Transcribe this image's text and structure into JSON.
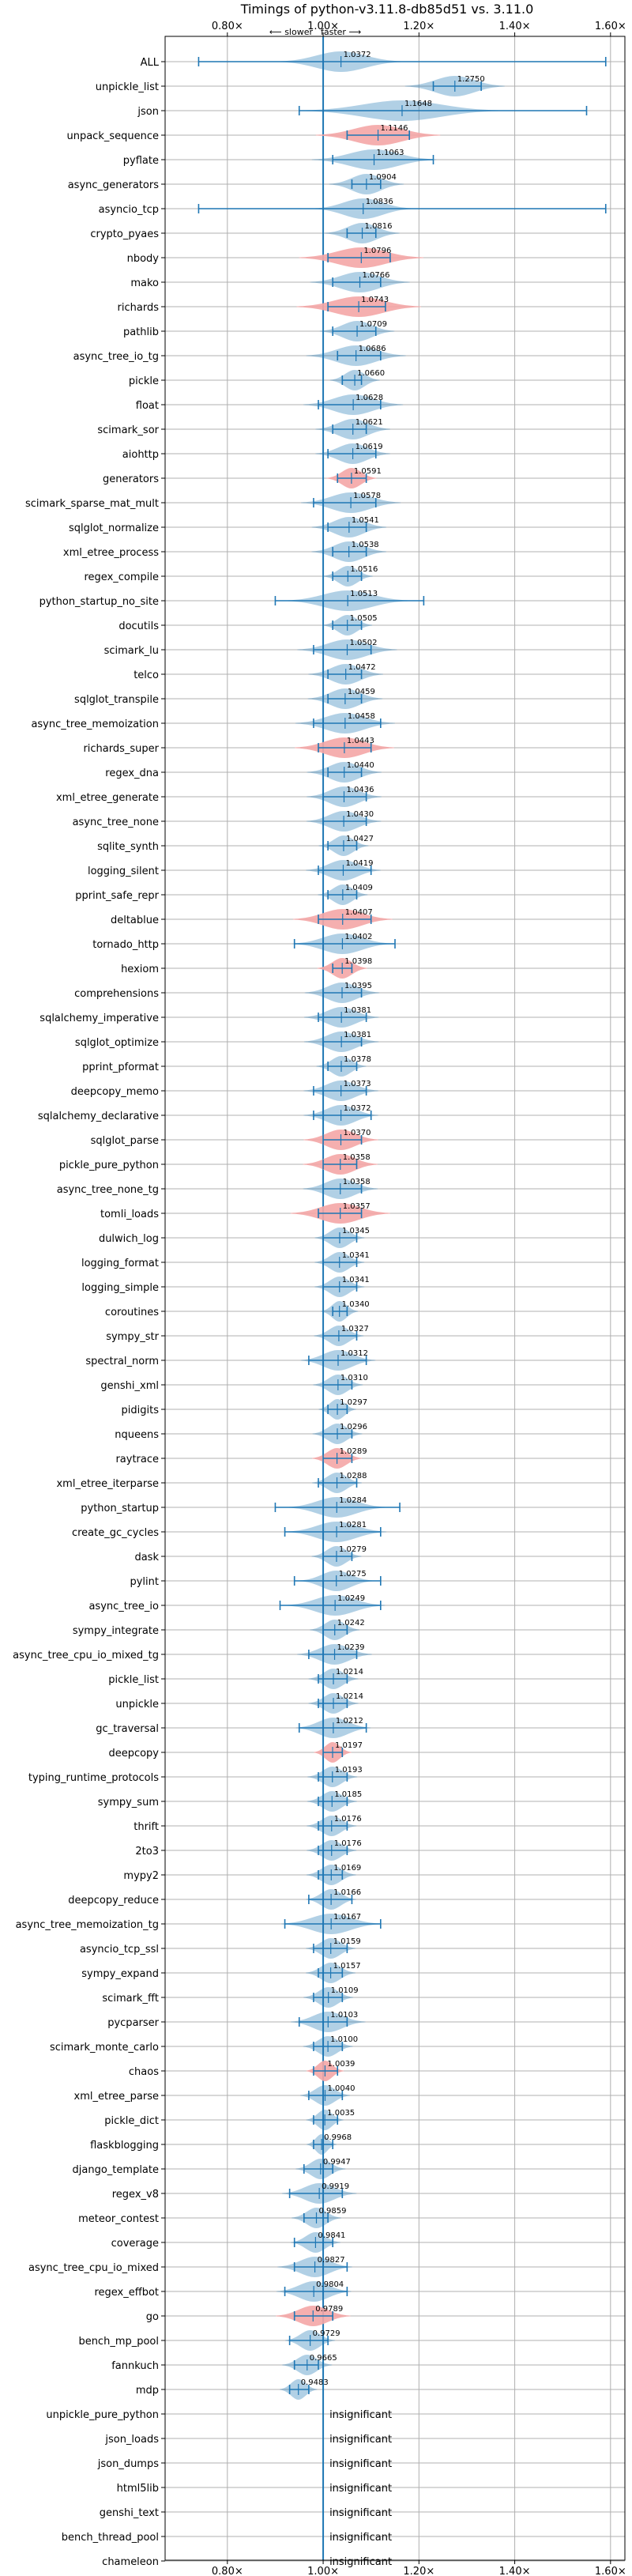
{
  "chart_data": {
    "type": "violin",
    "title": "Timings of python-v3.11.8-db85d51 vs. 3.11.0",
    "annotation_slower": "⟵ slower",
    "annotation_faster": "faster ⟶",
    "xlim": [
      0.67,
      1.63
    ],
    "xticks": [
      0.8,
      1.0,
      1.2,
      1.4,
      1.6
    ],
    "xtick_labels": [
      "0.80×",
      "1.00×",
      "1.20×",
      "1.40×",
      "1.60×"
    ],
    "reference_line": 1.0,
    "grid": true,
    "colors": {
      "normal": "#1f77b4",
      "highlight": "#f4a6a6",
      "line": "#1f77b4",
      "grid": "#b0b0b0"
    },
    "insignificant_label": "insignificant",
    "benchmarks": [
      {
        "name": "ALL",
        "mean": 1.0372,
        "label": "1.0372",
        "min": 0.74,
        "max": 1.59,
        "spread": 0.05
      },
      {
        "name": "unpickle_list",
        "mean": 1.275,
        "label": "1.2750",
        "min": 1.23,
        "max": 1.33,
        "spread": 0.04
      },
      {
        "name": "json",
        "mean": 1.1648,
        "label": "1.1648",
        "min": 0.95,
        "max": 1.55,
        "spread": 0.08
      },
      {
        "name": "unpack_sequence",
        "mean": 1.1146,
        "label": "1.1146",
        "min": 1.05,
        "max": 1.18,
        "spread": 0.05,
        "highlight": true
      },
      {
        "name": "pyflate",
        "mean": 1.1063,
        "label": "1.1063",
        "min": 1.02,
        "max": 1.23,
        "spread": 0.05
      },
      {
        "name": "async_generators",
        "mean": 1.0904,
        "label": "1.0904",
        "min": 1.06,
        "max": 1.12,
        "spread": 0.03
      },
      {
        "name": "asyncio_tcp",
        "mean": 1.0836,
        "label": "1.0836",
        "min": 0.74,
        "max": 1.59,
        "spread": 0.04
      },
      {
        "name": "crypto_pyaes",
        "mean": 1.0816,
        "label": "1.0816",
        "min": 1.05,
        "max": 1.11,
        "spread": 0.03
      },
      {
        "name": "nbody",
        "mean": 1.0796,
        "label": "1.0796",
        "min": 1.01,
        "max": 1.14,
        "spread": 0.05,
        "highlight": true
      },
      {
        "name": "mako",
        "mean": 1.0766,
        "label": "1.0766",
        "min": 1.02,
        "max": 1.12,
        "spread": 0.04
      },
      {
        "name": "richards",
        "mean": 1.0743,
        "label": "1.0743",
        "min": 1.01,
        "max": 1.13,
        "spread": 0.05,
        "highlight": true
      },
      {
        "name": "pathlib",
        "mean": 1.0709,
        "label": "1.0709",
        "min": 1.02,
        "max": 1.11,
        "spread": 0.03
      },
      {
        "name": "async_tree_io_tg",
        "mean": 1.0686,
        "label": "1.0686",
        "min": 1.03,
        "max": 1.12,
        "spread": 0.04
      },
      {
        "name": "pickle",
        "mean": 1.066,
        "label": "1.0660",
        "min": 1.04,
        "max": 1.08,
        "spread": 0.02
      },
      {
        "name": "float",
        "mean": 1.0628,
        "label": "1.0628",
        "min": 0.99,
        "max": 1.12,
        "spread": 0.04
      },
      {
        "name": "scimark_sor",
        "mean": 1.0621,
        "label": "1.0621",
        "min": 1.02,
        "max": 1.09,
        "spread": 0.03
      },
      {
        "name": "aiohttp",
        "mean": 1.0619,
        "label": "1.0619",
        "min": 1.01,
        "max": 1.11,
        "spread": 0.03
      },
      {
        "name": "generators",
        "mean": 1.0591,
        "label": "1.0591",
        "min": 1.03,
        "max": 1.09,
        "spread": 0.02,
        "highlight": true
      },
      {
        "name": "scimark_sparse_mat_mult",
        "mean": 1.0578,
        "label": "1.0578",
        "min": 0.98,
        "max": 1.11,
        "spread": 0.04
      },
      {
        "name": "sqlglot_normalize",
        "mean": 1.0541,
        "label": "1.0541",
        "min": 1.01,
        "max": 1.09,
        "spread": 0.03
      },
      {
        "name": "xml_etree_process",
        "mean": 1.0538,
        "label": "1.0538",
        "min": 1.02,
        "max": 1.09,
        "spread": 0.03
      },
      {
        "name": "regex_compile",
        "mean": 1.0516,
        "label": "1.0516",
        "min": 1.02,
        "max": 1.08,
        "spread": 0.02
      },
      {
        "name": "python_startup_no_site",
        "mean": 1.0513,
        "label": "1.0513",
        "min": 0.9,
        "max": 1.21,
        "spread": 0.05
      },
      {
        "name": "docutils",
        "mean": 1.0505,
        "label": "1.0505",
        "min": 1.02,
        "max": 1.08,
        "spread": 0.02
      },
      {
        "name": "scimark_lu",
        "mean": 1.0502,
        "label": "1.0502",
        "min": 0.98,
        "max": 1.1,
        "spread": 0.04
      },
      {
        "name": "telco",
        "mean": 1.0472,
        "label": "1.0472",
        "min": 1.01,
        "max": 1.08,
        "spread": 0.03
      },
      {
        "name": "sqlglot_transpile",
        "mean": 1.0459,
        "label": "1.0459",
        "min": 1.01,
        "max": 1.08,
        "spread": 0.03
      },
      {
        "name": "async_tree_memoization",
        "mean": 1.0458,
        "label": "1.0458",
        "min": 0.98,
        "max": 1.12,
        "spread": 0.04
      },
      {
        "name": "richards_super",
        "mean": 1.0443,
        "label": "1.0443",
        "min": 0.99,
        "max": 1.1,
        "spread": 0.04,
        "highlight": true
      },
      {
        "name": "regex_dna",
        "mean": 1.044,
        "label": "1.0440",
        "min": 1.01,
        "max": 1.08,
        "spread": 0.03
      },
      {
        "name": "xml_etree_generate",
        "mean": 1.0436,
        "label": "1.0436",
        "min": 1.0,
        "max": 1.09,
        "spread": 0.03
      },
      {
        "name": "async_tree_none",
        "mean": 1.043,
        "label": "1.0430",
        "min": 1.0,
        "max": 1.09,
        "spread": 0.03
      },
      {
        "name": "sqlite_synth",
        "mean": 1.0427,
        "label": "1.0427",
        "min": 1.01,
        "max": 1.07,
        "spread": 0.02
      },
      {
        "name": "logging_silent",
        "mean": 1.0419,
        "label": "1.0419",
        "min": 0.99,
        "max": 1.1,
        "spread": 0.03
      },
      {
        "name": "pprint_safe_repr",
        "mean": 1.0409,
        "label": "1.0409",
        "min": 1.01,
        "max": 1.07,
        "spread": 0.02
      },
      {
        "name": "deltablue",
        "mean": 1.0407,
        "label": "1.0407",
        "min": 0.99,
        "max": 1.1,
        "spread": 0.04,
        "highlight": true
      },
      {
        "name": "tornado_http",
        "mean": 1.0402,
        "label": "1.0402",
        "min": 0.94,
        "max": 1.15,
        "spread": 0.04
      },
      {
        "name": "hexiom",
        "mean": 1.0398,
        "label": "1.0398",
        "min": 1.02,
        "max": 1.06,
        "spread": 0.02,
        "highlight": true
      },
      {
        "name": "comprehensions",
        "mean": 1.0395,
        "label": "1.0395",
        "min": 1.0,
        "max": 1.08,
        "spread": 0.03
      },
      {
        "name": "sqlalchemy_imperative",
        "mean": 1.0381,
        "label": "1.0381",
        "min": 0.99,
        "max": 1.09,
        "spread": 0.03
      },
      {
        "name": "sqlglot_optimize",
        "mean": 1.0381,
        "label": "1.0381",
        "min": 1.0,
        "max": 1.08,
        "spread": 0.03
      },
      {
        "name": "pprint_pformat",
        "mean": 1.0378,
        "label": "1.0378",
        "min": 1.01,
        "max": 1.07,
        "spread": 0.02
      },
      {
        "name": "deepcopy_memo",
        "mean": 1.0373,
        "label": "1.0373",
        "min": 0.98,
        "max": 1.09,
        "spread": 0.03
      },
      {
        "name": "sqlalchemy_declarative",
        "mean": 1.0372,
        "label": "1.0372",
        "min": 0.98,
        "max": 1.1,
        "spread": 0.03
      },
      {
        "name": "sqlglot_parse",
        "mean": 1.037,
        "label": "1.0370",
        "min": 1.0,
        "max": 1.08,
        "spread": 0.03,
        "highlight": true
      },
      {
        "name": "pickle_pure_python",
        "mean": 1.0358,
        "label": "1.0358",
        "min": 1.0,
        "max": 1.07,
        "spread": 0.03,
        "highlight": true
      },
      {
        "name": "async_tree_none_tg",
        "mean": 1.0358,
        "label": "1.0358",
        "min": 1.0,
        "max": 1.08,
        "spread": 0.03
      },
      {
        "name": "tomli_loads",
        "mean": 1.0357,
        "label": "1.0357",
        "min": 0.99,
        "max": 1.08,
        "spread": 0.04,
        "highlight": true
      },
      {
        "name": "dulwich_log",
        "mean": 1.0345,
        "label": "1.0345",
        "min": 1.0,
        "max": 1.07,
        "spread": 0.02
      },
      {
        "name": "logging_format",
        "mean": 1.0341,
        "label": "1.0341",
        "min": 1.0,
        "max": 1.07,
        "spread": 0.02
      },
      {
        "name": "logging_simple",
        "mean": 1.0341,
        "label": "1.0341",
        "min": 1.0,
        "max": 1.07,
        "spread": 0.02
      },
      {
        "name": "coroutines",
        "mean": 1.034,
        "label": "1.0340",
        "min": 1.02,
        "max": 1.05,
        "spread": 0.015
      },
      {
        "name": "sympy_str",
        "mean": 1.0327,
        "label": "1.0327",
        "min": 1.0,
        "max": 1.07,
        "spread": 0.02
      },
      {
        "name": "spectral_norm",
        "mean": 1.0312,
        "label": "1.0312",
        "min": 0.97,
        "max": 1.09,
        "spread": 0.03
      },
      {
        "name": "genshi_xml",
        "mean": 1.031,
        "label": "1.0310",
        "min": 1.0,
        "max": 1.06,
        "spread": 0.02
      },
      {
        "name": "pidigits",
        "mean": 1.0297,
        "label": "1.0297",
        "min": 1.01,
        "max": 1.05,
        "spread": 0.015
      },
      {
        "name": "nqueens",
        "mean": 1.0296,
        "label": "1.0296",
        "min": 1.0,
        "max": 1.06,
        "spread": 0.02
      },
      {
        "name": "raytrace",
        "mean": 1.0289,
        "label": "1.0289",
        "min": 1.0,
        "max": 1.06,
        "spread": 0.02,
        "highlight": true
      },
      {
        "name": "xml_etree_iterparse",
        "mean": 1.0288,
        "label": "1.0288",
        "min": 0.99,
        "max": 1.07,
        "spread": 0.02
      },
      {
        "name": "python_startup",
        "mean": 1.0284,
        "label": "1.0284",
        "min": 0.9,
        "max": 1.16,
        "spread": 0.04
      },
      {
        "name": "create_gc_cycles",
        "mean": 1.0281,
        "label": "1.0281",
        "min": 0.92,
        "max": 1.12,
        "spread": 0.04
      },
      {
        "name": "dask",
        "mean": 1.0279,
        "label": "1.0279",
        "min": 1.0,
        "max": 1.06,
        "spread": 0.02
      },
      {
        "name": "pylint",
        "mean": 1.0275,
        "label": "1.0275",
        "min": 0.94,
        "max": 1.12,
        "spread": 0.03
      },
      {
        "name": "async_tree_io",
        "mean": 1.0249,
        "label": "1.0249",
        "min": 0.91,
        "max": 1.12,
        "spread": 0.04
      },
      {
        "name": "sympy_integrate",
        "mean": 1.0242,
        "label": "1.0242",
        "min": 1.0,
        "max": 1.05,
        "spread": 0.02
      },
      {
        "name": "async_tree_cpu_io_mixed_tg",
        "mean": 1.0239,
        "label": "1.0239",
        "min": 0.97,
        "max": 1.07,
        "spread": 0.03
      },
      {
        "name": "pickle_list",
        "mean": 1.0214,
        "label": "1.0214",
        "min": 0.99,
        "max": 1.05,
        "spread": 0.02
      },
      {
        "name": "unpickle",
        "mean": 1.0214,
        "label": "1.0214",
        "min": 0.99,
        "max": 1.05,
        "spread": 0.02
      },
      {
        "name": "gc_traversal",
        "mean": 1.0212,
        "label": "1.0212",
        "min": 0.95,
        "max": 1.09,
        "spread": 0.03
      },
      {
        "name": "deepcopy",
        "mean": 1.0197,
        "label": "1.0197",
        "min": 1.0,
        "max": 1.04,
        "spread": 0.015,
        "highlight": true
      },
      {
        "name": "typing_runtime_protocols",
        "mean": 1.0193,
        "label": "1.0193",
        "min": 0.99,
        "max": 1.05,
        "spread": 0.02
      },
      {
        "name": "sympy_sum",
        "mean": 1.0185,
        "label": "1.0185",
        "min": 0.99,
        "max": 1.05,
        "spread": 0.02
      },
      {
        "name": "thrift",
        "mean": 1.0176,
        "label": "1.0176",
        "min": 0.99,
        "max": 1.05,
        "spread": 0.02
      },
      {
        "name": "2to3",
        "mean": 1.0176,
        "label": "1.0176",
        "min": 0.99,
        "max": 1.05,
        "spread": 0.02
      },
      {
        "name": "mypy2",
        "mean": 1.0169,
        "label": "1.0169",
        "min": 0.99,
        "max": 1.04,
        "spread": 0.02
      },
      {
        "name": "deepcopy_reduce",
        "mean": 1.0166,
        "label": "1.0166",
        "min": 0.97,
        "max": 1.06,
        "spread": 0.02
      },
      {
        "name": "async_tree_memoization_tg",
        "mean": 1.0167,
        "label": "1.0167",
        "min": 0.92,
        "max": 1.12,
        "spread": 0.04
      },
      {
        "name": "asyncio_tcp_ssl",
        "mean": 1.0159,
        "label": "1.0159",
        "min": 0.98,
        "max": 1.05,
        "spread": 0.02
      },
      {
        "name": "sympy_expand",
        "mean": 1.0157,
        "label": "1.0157",
        "min": 0.99,
        "max": 1.04,
        "spread": 0.02
      },
      {
        "name": "scimark_fft",
        "mean": 1.0109,
        "label": "1.0109",
        "min": 0.98,
        "max": 1.04,
        "spread": 0.02
      },
      {
        "name": "pycparser",
        "mean": 1.0103,
        "label": "1.0103",
        "min": 0.95,
        "max": 1.05,
        "spread": 0.03
      },
      {
        "name": "scimark_monte_carlo",
        "mean": 1.01,
        "label": "1.0100",
        "min": 0.98,
        "max": 1.04,
        "spread": 0.02
      },
      {
        "name": "chaos",
        "mean": 1.0039,
        "label": "1.0039",
        "min": 0.98,
        "max": 1.03,
        "spread": 0.015,
        "highlight": true
      },
      {
        "name": "xml_etree_parse",
        "mean": 1.004,
        "label": "1.0040",
        "min": 0.97,
        "max": 1.04,
        "spread": 0.02
      },
      {
        "name": "pickle_dict",
        "mean": 1.0035,
        "label": "1.0035",
        "min": 0.98,
        "max": 1.03,
        "spread": 0.015
      },
      {
        "name": "flaskblogging",
        "mean": 0.9968,
        "label": "0.9968",
        "min": 0.98,
        "max": 1.02,
        "spread": 0.012
      },
      {
        "name": "django_template",
        "mean": 0.9947,
        "label": "0.9947",
        "min": 0.96,
        "max": 1.02,
        "spread": 0.02
      },
      {
        "name": "regex_v8",
        "mean": 0.9919,
        "label": "0.9919",
        "min": 0.93,
        "max": 1.04,
        "spread": 0.03
      },
      {
        "name": "meteor_contest",
        "mean": 0.9859,
        "label": "0.9859",
        "min": 0.96,
        "max": 1.01,
        "spread": 0.02
      },
      {
        "name": "coverage",
        "mean": 0.9841,
        "label": "0.9841",
        "min": 0.94,
        "max": 1.02,
        "spread": 0.02
      },
      {
        "name": "async_tree_cpu_io_mixed",
        "mean": 0.9827,
        "label": "0.9827",
        "min": 0.94,
        "max": 1.05,
        "spread": 0.03
      },
      {
        "name": "regex_effbot",
        "mean": 0.9804,
        "label": "0.9804",
        "min": 0.92,
        "max": 1.05,
        "spread": 0.03
      },
      {
        "name": "go",
        "mean": 0.9789,
        "label": "0.9789",
        "min": 0.94,
        "max": 1.02,
        "spread": 0.03,
        "highlight": true
      },
      {
        "name": "bench_mp_pool",
        "mean": 0.9729,
        "label": "0.9729",
        "min": 0.93,
        "max": 1.01,
        "spread": 0.02
      },
      {
        "name": "fannkuch",
        "mean": 0.9665,
        "label": "0.9665",
        "min": 0.94,
        "max": 0.99,
        "spread": 0.02
      },
      {
        "name": "mdp",
        "mean": 0.9483,
        "label": "0.9483",
        "min": 0.93,
        "max": 0.97,
        "spread": 0.015
      },
      {
        "name": "unpickle_pure_python",
        "insignificant": true
      },
      {
        "name": "json_loads",
        "insignificant": true
      },
      {
        "name": "json_dumps",
        "insignificant": true
      },
      {
        "name": "html5lib",
        "insignificant": true
      },
      {
        "name": "genshi_text",
        "insignificant": true
      },
      {
        "name": "bench_thread_pool",
        "insignificant": true
      },
      {
        "name": "chameleon",
        "insignificant": true
      }
    ]
  }
}
